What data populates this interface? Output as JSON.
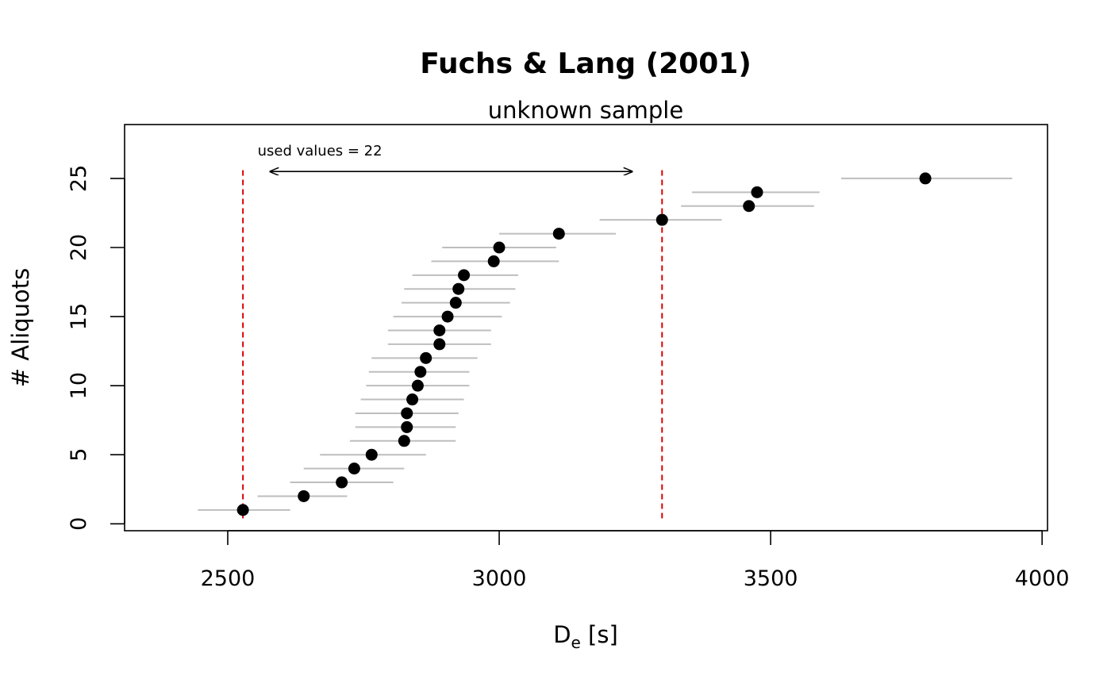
{
  "chart_data": {
    "type": "scatter",
    "title": "Fuchs & Lang (2001)",
    "subtitle": "unknown sample",
    "xlabel": {
      "main": "D",
      "sub": "e",
      "rest": " [s]"
    },
    "ylabel": "# Aliquots",
    "xlim": [
      2310,
      4010
    ],
    "ylim": [
      -0.5,
      28.9
    ],
    "x_ticks": [
      2500,
      3000,
      3500,
      4000
    ],
    "y_ticks": [
      0,
      5,
      10,
      15,
      20,
      25
    ],
    "grid": false,
    "legend": "none",
    "colors": {
      "point": "#000000",
      "error_bar": "#bebebe",
      "boundary": "#dd0000",
      "axis": "#000000"
    },
    "points": [
      {
        "y": 1,
        "x": 2528,
        "lo": 2445,
        "hi": 2615
      },
      {
        "y": 2,
        "x": 2640,
        "lo": 2555,
        "hi": 2720
      },
      {
        "y": 3,
        "x": 2710,
        "lo": 2615,
        "hi": 2805
      },
      {
        "y": 4,
        "x": 2733,
        "lo": 2640,
        "hi": 2825
      },
      {
        "y": 5,
        "x": 2765,
        "lo": 2670,
        "hi": 2865
      },
      {
        "y": 6,
        "x": 2825,
        "lo": 2725,
        "hi": 2920
      },
      {
        "y": 7,
        "x": 2830,
        "lo": 2735,
        "hi": 2920
      },
      {
        "y": 8,
        "x": 2830,
        "lo": 2735,
        "hi": 2925
      },
      {
        "y": 9,
        "x": 2840,
        "lo": 2745,
        "hi": 2935
      },
      {
        "y": 10,
        "x": 2850,
        "lo": 2755,
        "hi": 2945
      },
      {
        "y": 11,
        "x": 2855,
        "lo": 2760,
        "hi": 2945
      },
      {
        "y": 12,
        "x": 2865,
        "lo": 2765,
        "hi": 2960
      },
      {
        "y": 13,
        "x": 2890,
        "lo": 2795,
        "hi": 2985
      },
      {
        "y": 14,
        "x": 2890,
        "lo": 2795,
        "hi": 2985
      },
      {
        "y": 15,
        "x": 2905,
        "lo": 2805,
        "hi": 3005
      },
      {
        "y": 16,
        "x": 2920,
        "lo": 2820,
        "hi": 3020
      },
      {
        "y": 17,
        "x": 2925,
        "lo": 2825,
        "hi": 3030
      },
      {
        "y": 18,
        "x": 2935,
        "lo": 2840,
        "hi": 3035
      },
      {
        "y": 19,
        "x": 2990,
        "lo": 2875,
        "hi": 3110
      },
      {
        "y": 20,
        "x": 3000,
        "lo": 2895,
        "hi": 3105
      },
      {
        "y": 21,
        "x": 3110,
        "lo": 3000,
        "hi": 3215
      },
      {
        "y": 22,
        "x": 3300,
        "lo": 3185,
        "hi": 3410
      },
      {
        "y": 23,
        "x": 3460,
        "lo": 3335,
        "hi": 3580
      },
      {
        "y": 24,
        "x": 3475,
        "lo": 3355,
        "hi": 3590
      },
      {
        "y": 25,
        "x": 3785,
        "lo": 3630,
        "hi": 3945
      }
    ],
    "boundaries": [
      2528,
      3300
    ],
    "annotation": {
      "text": "used values =  22",
      "x": 2555,
      "y": 27,
      "arrow_from": 2578,
      "arrow_to": 3245,
      "arrow_y": 25.5
    }
  }
}
